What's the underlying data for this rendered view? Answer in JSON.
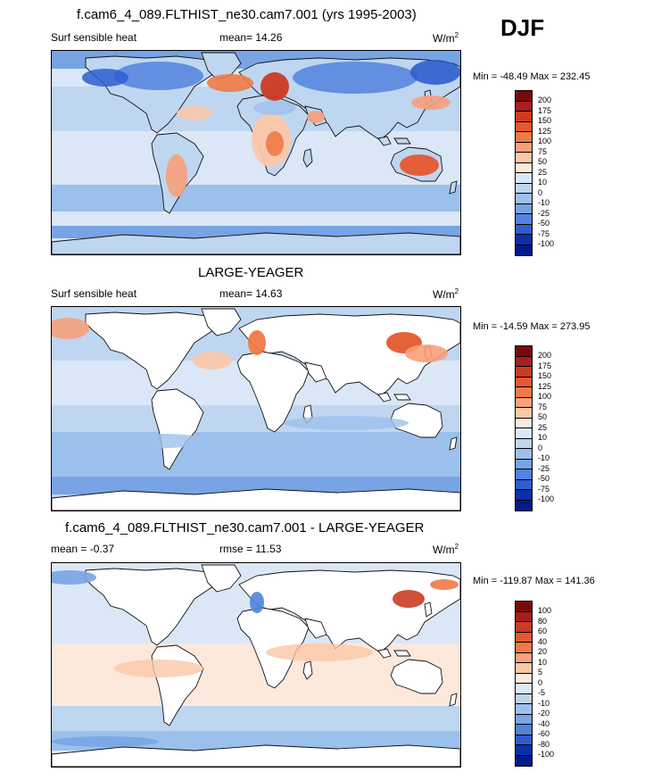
{
  "header": {
    "season": "DJF"
  },
  "colors": {
    "land": "#ffffff",
    "coast": "#111111",
    "ocean_base": "#c9dcf3"
  },
  "chart_data": [
    {
      "type": "heatmap",
      "title": "f.cam6_4_089.FLTHIST_ne30.cam7.001 (yrs 1995-2003)",
      "variable": "Surf sensible heat",
      "mean_text": "mean=  14.26",
      "units_text": "W/m",
      "units_exp": "2",
      "minmax_text": "Min = -48.49 Max = 232.45",
      "levels": [
        "200",
        "175",
        "150",
        "125",
        "100",
        "75",
        "50",
        "25",
        "10",
        "0",
        "-10",
        "-25",
        "-50",
        "-75",
        "-100"
      ],
      "colors": [
        "#7a0a0a",
        "#a81e1e",
        "#cc3b22",
        "#e4582d",
        "#f07a46",
        "#f7a07a",
        "#fbc7a8",
        "#fde8dc",
        "#dbe7f6",
        "#bfd6f1",
        "#9cc0ec",
        "#78a3e4",
        "#5283de",
        "#2c5ecf",
        "#0b2fa8",
        "#041a86"
      ]
    },
    {
      "type": "heatmap",
      "title": "LARGE-YEAGER",
      "variable": "Surf sensible heat",
      "mean_text": "mean=  14.63",
      "units_text": "W/m",
      "units_exp": "2",
      "minmax_text": "Min = -14.59 Max = 273.95",
      "levels": [
        "200",
        "175",
        "150",
        "125",
        "100",
        "75",
        "50",
        "25",
        "10",
        "0",
        "-10",
        "-25",
        "-50",
        "-75",
        "-100"
      ],
      "colors": [
        "#7a0a0a",
        "#a81e1e",
        "#cc3b22",
        "#e4582d",
        "#f07a46",
        "#f7a07a",
        "#fbc7a8",
        "#fde8dc",
        "#dbe7f6",
        "#bfd6f1",
        "#9cc0ec",
        "#78a3e4",
        "#5283de",
        "#2c5ecf",
        "#0b2fa8",
        "#041a86"
      ]
    },
    {
      "type": "heatmap",
      "title": "f.cam6_4_089.FLTHIST_ne30.cam7.001 - LARGE-YEAGER",
      "mean_text": "mean =  -0.37",
      "rmse_text": "rmse =  11.53",
      "units_text": "W/m",
      "units_exp": "2",
      "minmax_text": "Min = -119.87 Max = 141.36",
      "levels": [
        "100",
        "80",
        "60",
        "40",
        "20",
        "10",
        "5",
        "0",
        "-5",
        "-10",
        "-20",
        "-40",
        "-60",
        "-80",
        "-100"
      ],
      "colors": [
        "#7a0a0a",
        "#a81e1e",
        "#cc3b22",
        "#e4582d",
        "#f07a46",
        "#f7a07a",
        "#fbc7a8",
        "#fde8dc",
        "#dbe7f6",
        "#bfd6f1",
        "#9cc0ec",
        "#78a3e4",
        "#5283de",
        "#2c5ecf",
        "#0b2fa8",
        "#041a86"
      ]
    }
  ]
}
